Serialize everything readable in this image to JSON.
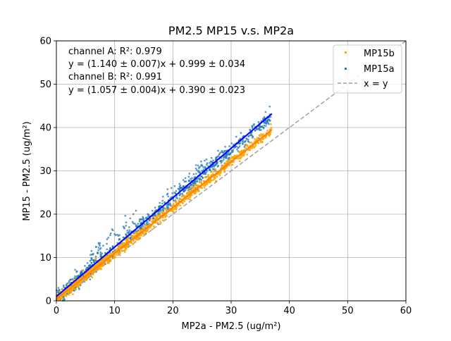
{
  "chart_data": {
    "type": "scatter",
    "title": "PM2.5 MP15 v.s. MP2a",
    "xlabel": "MP2a - PM2.5 (ug/m²)",
    "ylabel": "MP15 - PM2.5 (ug/m²)",
    "xlim": [
      0,
      60
    ],
    "ylim": [
      0,
      60
    ],
    "xticks": [
      "0",
      "10",
      "20",
      "30",
      "40",
      "50",
      "60"
    ],
    "yticks": [
      "0",
      "10",
      "20",
      "30",
      "40",
      "50",
      "60"
    ],
    "grid": true,
    "legend_position": "top-right",
    "annotations": [
      "channel A: R²: 0.979",
      "y = (1.140 ± 0.007)x + 0.999 ± 0.034",
      "channel B: R²: 0.991",
      "y = (1.057 ± 0.004)x + 0.390 ± 0.023"
    ],
    "series": [
      {
        "name": "MP15b",
        "kind": "scatter",
        "color": "#ffa500",
        "slope": 1.057,
        "intercept": 0.39,
        "x_range": [
          0,
          37
        ]
      },
      {
        "name": "MP15a",
        "kind": "scatter",
        "color": "#1f77b4",
        "slope": 1.14,
        "intercept": 0.999,
        "x_range": [
          0,
          37
        ]
      },
      {
        "name": "x = y",
        "kind": "line",
        "color": "#a0a0a0",
        "dashed": true,
        "x": [
          0,
          60
        ],
        "y": [
          0,
          60
        ]
      }
    ],
    "fit_lines": [
      {
        "color": "#0000ff",
        "slope": 1.14,
        "intercept": 0.999,
        "x_range": [
          0,
          37
        ]
      },
      {
        "color": "#ff7f0e",
        "slope": 1.057,
        "intercept": 0.39,
        "x_range": [
          0,
          37
        ]
      }
    ]
  }
}
